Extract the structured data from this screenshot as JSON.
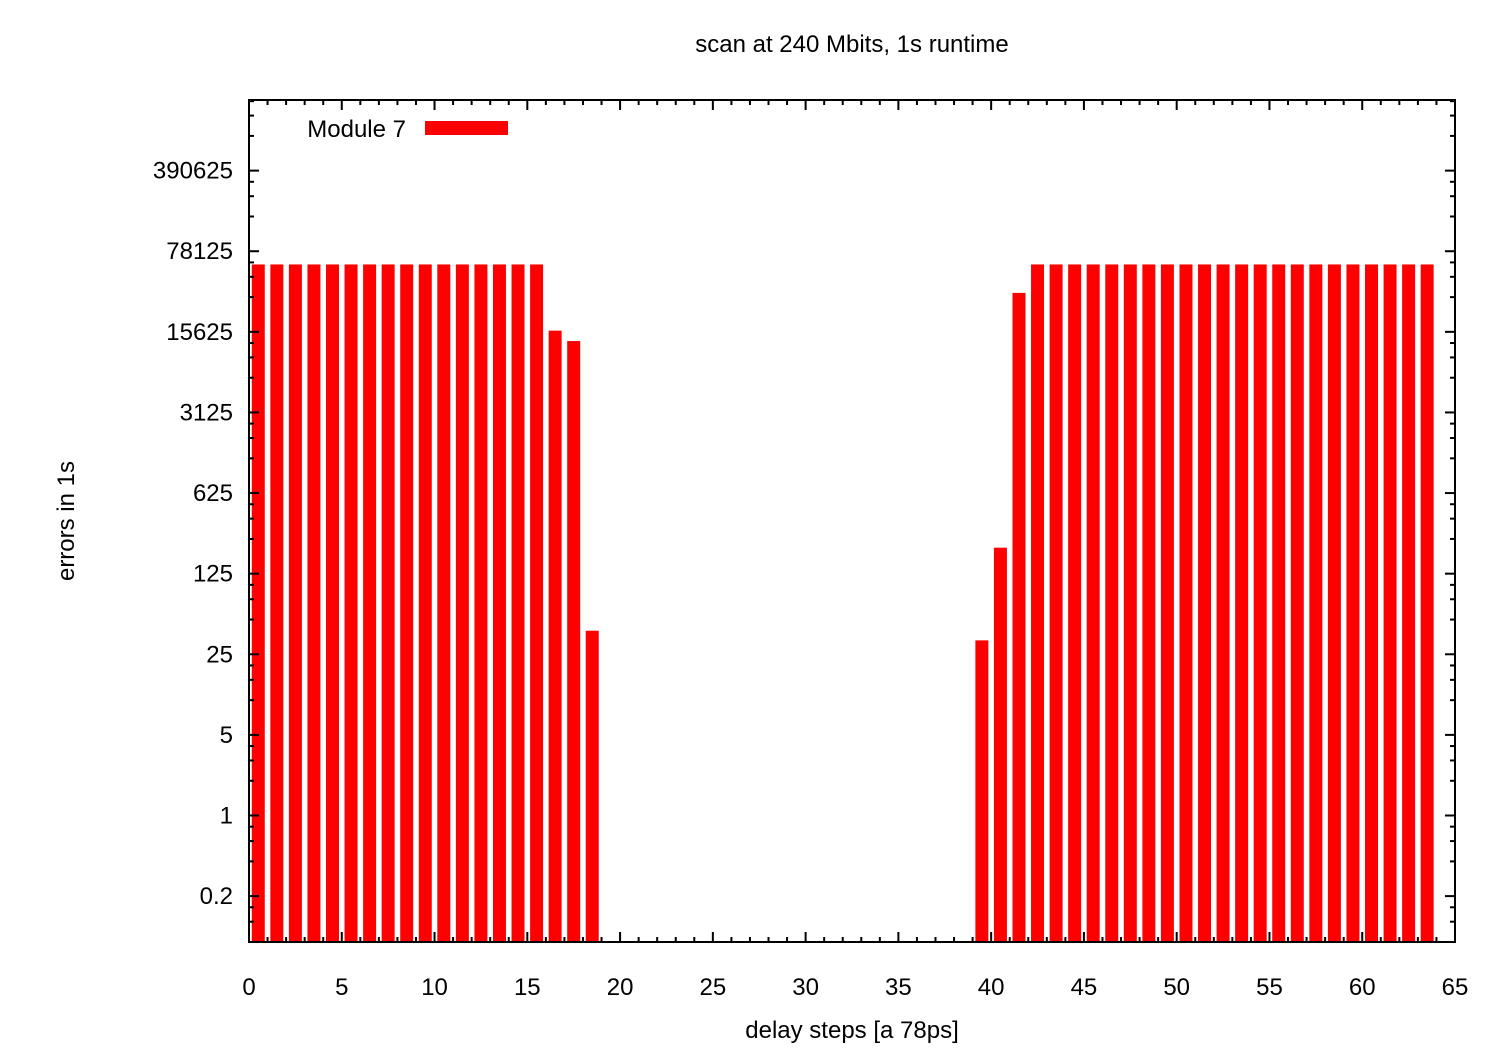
{
  "chart_data": {
    "type": "bar",
    "title": "scan at 240 Mbits, 1s runtime",
    "xlabel": "delay steps [a 78ps]",
    "ylabel": "errors in 1s",
    "xlim": [
      0,
      65
    ],
    "ylim": [
      0.08,
      1600000
    ],
    "yscale": "log",
    "grid": false,
    "legend_position": "top-left",
    "xticks": [
      0,
      5,
      10,
      15,
      20,
      25,
      30,
      35,
      40,
      45,
      50,
      55,
      60,
      65
    ],
    "yticks": [
      0.2,
      1,
      5,
      25,
      125,
      625,
      3125,
      15625,
      78125,
      390625
    ],
    "ytick_labels": [
      "0.2",
      "1",
      "5",
      "25",
      "125",
      "625",
      "3125",
      "15625",
      "78125",
      "390625"
    ],
    "series": [
      {
        "name": "Module 7",
        "color": "#ff0000",
        "x": [
          0,
          1,
          2,
          3,
          4,
          5,
          6,
          7,
          8,
          9,
          10,
          11,
          12,
          13,
          14,
          15,
          16,
          17,
          18,
          39,
          40,
          41,
          42,
          43,
          44,
          45,
          46,
          47,
          48,
          49,
          50,
          51,
          52,
          53,
          54,
          55,
          56,
          57,
          58,
          59,
          60,
          61,
          62,
          63
        ],
        "values": [
          60000,
          60000,
          60000,
          60000,
          60000,
          60000,
          60000,
          60000,
          60000,
          60000,
          60000,
          60000,
          60000,
          60000,
          60000,
          60000,
          16000,
          13000,
          40,
          33,
          210,
          34000,
          60000,
          60000,
          60000,
          60000,
          60000,
          60000,
          60000,
          60000,
          60000,
          60000,
          60000,
          60000,
          60000,
          60000,
          60000,
          60000,
          60000,
          60000,
          60000,
          60000,
          60000,
          60000
        ]
      }
    ]
  }
}
